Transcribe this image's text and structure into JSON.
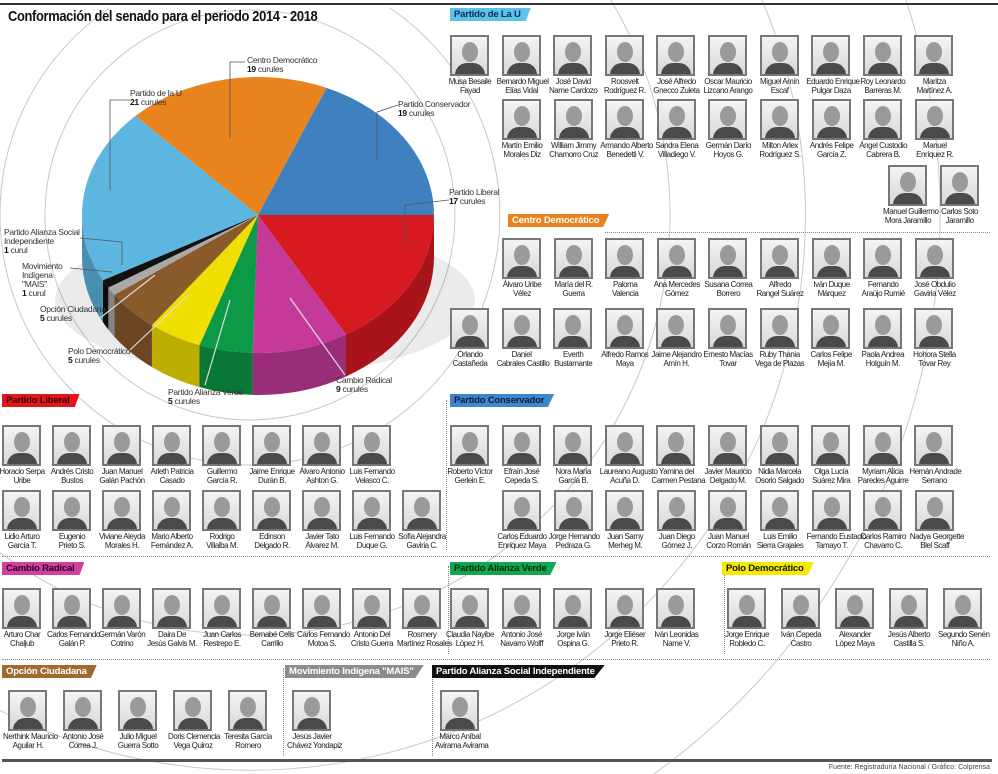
{
  "title": "Conformación del senado para el periodo 2014 - 2018",
  "footer": "Fuente: Registraduría Nacional / Gráfico: Colprensa",
  "chart_data": {
    "type": "pie",
    "title": "Conformación del senado para el periodo 2014 - 2018",
    "unit": "curules",
    "slices": [
      {
        "label": "Partido Liberal",
        "value": 17,
        "value_text": "17",
        "unit_text": "curules",
        "color": "#d71920"
      },
      {
        "label": "Cambio Radical",
        "value": 9,
        "value_text": "9",
        "unit_text": "curules",
        "color": "#c53a98"
      },
      {
        "label": "Partido Alianza Verde",
        "value": 5,
        "value_text": "5",
        "unit_text": "curules",
        "color": "#0c9a47"
      },
      {
        "label": "Polo Democrático",
        "value": 5,
        "value_text": "5",
        "unit_text": "curules",
        "color": "#f0df00"
      },
      {
        "label": "Opción Ciudadana",
        "value": 5,
        "value_text": "5",
        "unit_text": "curules",
        "color": "#8b5a2b"
      },
      {
        "label": "Movimiento Indígena \"MAIS\"",
        "value": 1,
        "value_text": "1",
        "unit_text": "curul",
        "color": "#a9a9a9"
      },
      {
        "label": "Partido Alianza Social Independiente",
        "value": 1,
        "value_text": "1",
        "unit_text": "curul",
        "color": "#111111"
      },
      {
        "label": "Partido de la U",
        "value": 21,
        "value_text": "21",
        "unit_text": "curules",
        "color": "#5cb6e0"
      },
      {
        "label": "Centro Democrático",
        "value": 19,
        "value_text": "19",
        "unit_text": "curules",
        "color": "#e8831e"
      },
      {
        "label": "Partido Conservador",
        "value": 19,
        "value_text": "19",
        "unit_text": "curules",
        "color": "#3f80bf"
      }
    ]
  },
  "sections": [
    {
      "id": "u",
      "title": "Partido de La U",
      "bg": "#5cc3e8",
      "fg": "#0b2a5a",
      "members": [
        [
          "Musa Besaile",
          "Fayad"
        ],
        [
          "Bernardo Miguel",
          "Elías Vidal"
        ],
        [
          "José David",
          "Name Cardozo"
        ],
        [
          "Roosvelt",
          "Rodríguez R."
        ],
        [
          "José Alfredo",
          "Gnecco Zuleta"
        ],
        [
          "Oscar Mauricio",
          "Lizcano Arango"
        ],
        [
          "Miguel Amín",
          "Escaf"
        ],
        [
          "Eduardo Enrique",
          "Pulgar Daza"
        ],
        [
          "Roy Leonardo",
          "Barreras M."
        ],
        [
          "Maritza",
          "Martínez A."
        ],
        [
          "Martín Emilio",
          "Morales Diz"
        ],
        [
          "William Jimmy",
          "Chamorro Cruz"
        ],
        [
          "Armando Alberto",
          "Benedetti V."
        ],
        [
          "Sandra Elena",
          "Villadiego V."
        ],
        [
          "Germán Darío",
          "Hoyos G."
        ],
        [
          "Milton Arlex",
          "Rodríguez S."
        ],
        [
          "Andrés Felipe",
          "García Z."
        ],
        [
          "Ángel Custodio",
          "Cabrera B."
        ],
        [
          "Manuel",
          "Enríquez R."
        ],
        [
          "Manuel Guillermo",
          "Mora Jaramillo"
        ],
        [
          "Carlos Soto",
          "Jaramillo"
        ]
      ]
    },
    {
      "id": "cd",
      "title": "Centro Democrático",
      "bg": "#e8831e",
      "fg": "#ffffff",
      "members": [
        [
          "Álvaro Uribe",
          "Vélez"
        ],
        [
          "María del R.",
          "Guerra"
        ],
        [
          "Paloma",
          "Valencia"
        ],
        [
          "Ana Mercedes",
          "Gómez"
        ],
        [
          "Susana Correa",
          "Borrero"
        ],
        [
          "Alfredo",
          "Rangel Suárez"
        ],
        [
          "Iván Duque",
          "Márquez"
        ],
        [
          "Fernando",
          "Araújo Rumié"
        ],
        [
          "José Obdulio",
          "Gaviria Vélez"
        ],
        [
          "Orlando",
          "Castañeda"
        ],
        [
          "Daniel",
          "Cabrales Castillo"
        ],
        [
          "Everth",
          "Bustamante"
        ],
        [
          "Alfredo Ramos",
          "Maya"
        ],
        [
          "Jaime Alejandro",
          "Amín H."
        ],
        [
          "Ernesto Macías",
          "Tovar"
        ],
        [
          "Ruby Thania",
          "Vega de Plazas"
        ],
        [
          "Carlos Felipe",
          "Mejía M."
        ],
        [
          "Paola Andrea",
          "Holguín M."
        ],
        [
          "Hohora Stella",
          "Tovar Rey"
        ]
      ]
    },
    {
      "id": "conservador",
      "title": "Partido Conservador",
      "bg": "#3f86c8",
      "fg": "#0b1f45",
      "members": [
        [
          "Roberto Víctor",
          "Gerlein E."
        ],
        [
          "Efraín José",
          "Cepeda S."
        ],
        [
          "Nora María",
          "García B."
        ],
        [
          "Laureano Augusto",
          "Acuña D."
        ],
        [
          "Yamina del",
          "Carmen Pestana"
        ],
        [
          "Javier Mauricio",
          "Delgado M."
        ],
        [
          "Nidia Marcela",
          "Osorio Salgado"
        ],
        [
          "Olga Lucía",
          "Suárez Mira"
        ],
        [
          "Myriam Alicia",
          "Paredes Aguirre"
        ],
        [
          "Hernán Andrade",
          "Serrano"
        ],
        [
          "Carlos Eduardo",
          "Enríquez Maya"
        ],
        [
          "Jorge Hernando",
          "Pedraza G."
        ],
        [
          "Juan Samy",
          "Merheg M."
        ],
        [
          "Juan Diego",
          "Gómez J."
        ],
        [
          "Juan Manuel",
          "Corzo Román"
        ],
        [
          "Luis Emilio",
          "Sierra Grajales"
        ],
        [
          "Fernando Eustacio",
          "Tamayo T."
        ],
        [
          "Carlos Ramiro",
          "Chavarro C."
        ],
        [
          "Nadya Georgette",
          "Blel Scaff"
        ]
      ]
    },
    {
      "id": "liberal",
      "title": "Partido Liberal",
      "bg": "#e0161d",
      "fg": "#3a0000",
      "members": [
        [
          "Horacio Serpa",
          "Uribe"
        ],
        [
          "Andrés Cristo",
          "Bustos"
        ],
        [
          "Juan Manuel",
          "Galán Pachón"
        ],
        [
          "Arleth Patricia",
          "Casado"
        ],
        [
          "Guillermo",
          "García R."
        ],
        [
          "Jaime Enrique",
          "Durán B."
        ],
        [
          "Álvaro Antonio",
          "Ashton G."
        ],
        [
          "Luis Fernando",
          "Velasco C."
        ],
        [
          "Lidio Arturo",
          "García T."
        ],
        [
          "Eugenio",
          "Prieto S."
        ],
        [
          "Viviane Aleyda",
          "Morales H."
        ],
        [
          "Mario Alberto",
          "Fernández A."
        ],
        [
          "Rodrigo",
          "Villalba M."
        ],
        [
          "Edinson",
          "Delgado R."
        ],
        [
          "Javier Tato",
          "Álvarez M."
        ],
        [
          "Luis Fernando",
          "Duque G."
        ],
        [
          "Sofía Alejandra",
          "Gaviria C."
        ]
      ]
    },
    {
      "id": "cambio",
      "title": "Cambio Radical",
      "bg": "#d13fa0",
      "fg": "#2a0020",
      "members": [
        [
          "Arturo Char",
          "Chaljub"
        ],
        [
          "Carlos Fernando",
          "Galán P."
        ],
        [
          "Germán Varón",
          "Cotrino"
        ],
        [
          "Daira De",
          "Jesús Galvis M."
        ],
        [
          "Juan Carlos",
          "Restrepo E."
        ],
        [
          "Bernabé Celis",
          "Carrillo"
        ],
        [
          "Carlos Fernando",
          "Motoa S."
        ],
        [
          "Antonio Del",
          "Cristo Guerra"
        ],
        [
          "Rosmery",
          "Martínez Rosales"
        ]
      ]
    },
    {
      "id": "verde",
      "title": "Partido Alianza Verde",
      "bg": "#12a650",
      "fg": "#062a12",
      "members": [
        [
          "Claudia Nayibe",
          "López H."
        ],
        [
          "Antonio José",
          "Navarro Wolff"
        ],
        [
          "Jorge Iván",
          "Ospina G."
        ],
        [
          "Jorge Eliéser",
          "Prieto R."
        ],
        [
          "Iván Leonidas",
          "Name V."
        ]
      ]
    },
    {
      "id": "polo",
      "title": "Polo Democrático",
      "bg": "#f5ea00",
      "fg": "#111111",
      "members": [
        [
          "Jorge Enrique",
          "Robledo C."
        ],
        [
          "Iván Cepeda",
          "Castro"
        ],
        [
          "Alexander",
          "López Maya"
        ],
        [
          "Jesús Alberto",
          "Castilla S."
        ],
        [
          "Segundo Senén",
          "Niño A."
        ]
      ]
    },
    {
      "id": "opcion",
      "title": "Opción Ciudadana",
      "bg": "#a0692e",
      "fg": "#ffffff",
      "members": [
        [
          "Nerthink Mauricio",
          "Aguilar H."
        ],
        [
          "Antonio José",
          "Correa J."
        ],
        [
          "Julio Miguel",
          "Guerra Sotto"
        ],
        [
          "Doris Clemencia",
          "Vega Quiroz"
        ],
        [
          "Teresita García",
          "Romero"
        ]
      ]
    },
    {
      "id": "mais",
      "title": "Movimiento Indígena \"MAIS\"",
      "bg": "#8c8c8c",
      "fg": "#ffffff",
      "members": [
        [
          "Jesús Javier",
          "Chávez Yondapiz"
        ]
      ]
    },
    {
      "id": "asi",
      "title": "Partido Alianza Social Independiente",
      "bg": "#111111",
      "fg": "#ffffff",
      "members": [
        [
          "Marco Aníbal",
          "Avirama Avirama"
        ]
      ]
    }
  ]
}
